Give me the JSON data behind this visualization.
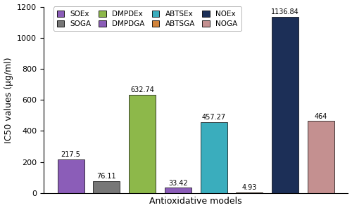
{
  "categories": [
    "SOEx",
    "SOGA",
    "DMPDEx",
    "DMPDGA",
    "ABTSEx",
    "ABTSGA",
    "NOEx",
    "NOGA"
  ],
  "values": [
    217.5,
    76.11,
    632.74,
    33.42,
    457.27,
    4.93,
    1136.84,
    464
  ],
  "colors": [
    "#8B5DB8",
    "#777777",
    "#8DB84A",
    "#8B5DB8",
    "#3AADBD",
    "#D2833A",
    "#1C2F57",
    "#C49090"
  ],
  "bar_labels": [
    "217.5",
    "76.11",
    "632.74",
    "33.42",
    "457.27",
    "4.93",
    "1136.84",
    "464"
  ],
  "legend_row1": [
    "SOEx",
    "SOGA",
    "DMPDEx",
    "DMPDGA"
  ],
  "legend_row2": [
    "ABTSEx",
    "ABTSGA",
    "NOEx",
    "NOGA"
  ],
  "legend_colors": [
    "#8B5DB8",
    "#777777",
    "#8DB84A",
    "#8B5DB8",
    "#3AADBD",
    "#D2833A",
    "#1C2F57",
    "#C49090"
  ],
  "xlabel": "Antioxidative models",
  "ylabel": "IC50 values (μg/ml)",
  "ylim": [
    0,
    1200
  ],
  "yticks": [
    0,
    200,
    400,
    600,
    800,
    1000,
    1200
  ],
  "label_fontsize": 9,
  "tick_fontsize": 8,
  "bar_width": 0.75,
  "figure_width": 5.0,
  "figure_height": 2.99,
  "dpi": 100
}
